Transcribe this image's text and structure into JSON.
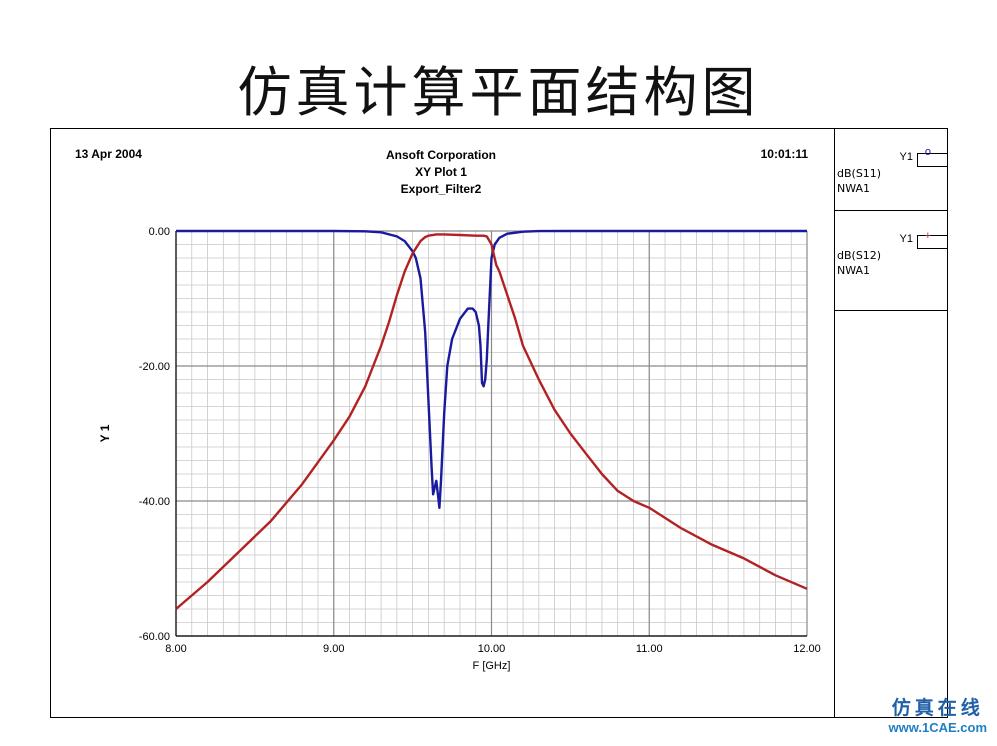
{
  "slide": {
    "title": "仿真计算平面结构图"
  },
  "plot_header": {
    "date": "13 Apr 2004",
    "company": "Ansoft Corporation",
    "plot_name": "XY Plot 1",
    "design": "Export_Filter2",
    "time": "10:01:11"
  },
  "legend": [
    {
      "axis": "Y1",
      "symbol": "o",
      "trace": "dB(S11)",
      "source": "NWA1",
      "color": "#1a1a9e"
    },
    {
      "axis": "Y1",
      "symbol": "+",
      "trace": "dB(S12)",
      "source": "NWA1",
      "color": "#b22222"
    }
  ],
  "watermark": {
    "text": "仿真在线",
    "url": "www.1CAE.com"
  },
  "chart_data": {
    "type": "line",
    "xlabel": "F [GHz]",
    "ylabel": "Y 1",
    "xlim": [
      8.0,
      12.0
    ],
    "ylim": [
      -60,
      0
    ],
    "xticks": [
      8.0,
      9.0,
      10.0,
      11.0,
      12.0
    ],
    "xtick_labels": [
      "8.00",
      "9.00",
      "10.00",
      "11.00",
      "12.00"
    ],
    "yticks": [
      0,
      -20,
      -40,
      -60
    ],
    "ytick_labels": [
      "0.00",
      "-20.00",
      "-40.00",
      "-60.00"
    ],
    "grid": true,
    "series": [
      {
        "name": "dB(S11)",
        "color": "#1a1a9e",
        "x": [
          8.0,
          9.0,
          9.2,
          9.3,
          9.4,
          9.45,
          9.5,
          9.52,
          9.55,
          9.58,
          9.6,
          9.62,
          9.63,
          9.64,
          9.65,
          9.66,
          9.67,
          9.68,
          9.7,
          9.72,
          9.75,
          9.8,
          9.85,
          9.88,
          9.9,
          9.92,
          9.93,
          9.94,
          9.95,
          9.96,
          9.97,
          9.98,
          10.0,
          10.02,
          10.05,
          10.1,
          10.2,
          10.3,
          10.5,
          11.0,
          12.0
        ],
        "y": [
          0,
          0,
          -0.05,
          -0.2,
          -0.8,
          -1.5,
          -3,
          -4,
          -7,
          -15,
          -25,
          -35,
          -39,
          -38,
          -37,
          -39,
          -41,
          -37,
          -27,
          -20,
          -16,
          -13,
          -11.5,
          -11.5,
          -12,
          -14,
          -17,
          -22.5,
          -23,
          -22,
          -19,
          -14,
          -4,
          -2,
          -1,
          -0.4,
          -0.1,
          -0.02,
          0,
          0,
          0
        ]
      },
      {
        "name": "dB(S12)",
        "color": "#b22222",
        "x": [
          8.0,
          8.2,
          8.4,
          8.6,
          8.8,
          9.0,
          9.1,
          9.2,
          9.3,
          9.35,
          9.4,
          9.45,
          9.5,
          9.55,
          9.58,
          9.6,
          9.65,
          9.7,
          9.8,
          9.9,
          9.95,
          9.97,
          10.0,
          10.03,
          10.05,
          10.1,
          10.15,
          10.2,
          10.3,
          10.4,
          10.5,
          10.6,
          10.7,
          10.8,
          10.9,
          11.0,
          11.2,
          11.4,
          11.6,
          11.8,
          12.0
        ],
        "y": [
          -56,
          -52,
          -47.5,
          -43,
          -37.5,
          -31,
          -27.5,
          -23,
          -17,
          -13.5,
          -9.5,
          -6,
          -3.3,
          -1.5,
          -0.9,
          -0.7,
          -0.5,
          -0.5,
          -0.6,
          -0.7,
          -0.7,
          -0.8,
          -2,
          -5,
          -6,
          -9.5,
          -13,
          -17,
          -22,
          -26.5,
          -30,
          -33,
          -36,
          -38.5,
          -40,
          -41,
          -44,
          -46.5,
          -48.5,
          -51,
          -53
        ]
      }
    ]
  }
}
